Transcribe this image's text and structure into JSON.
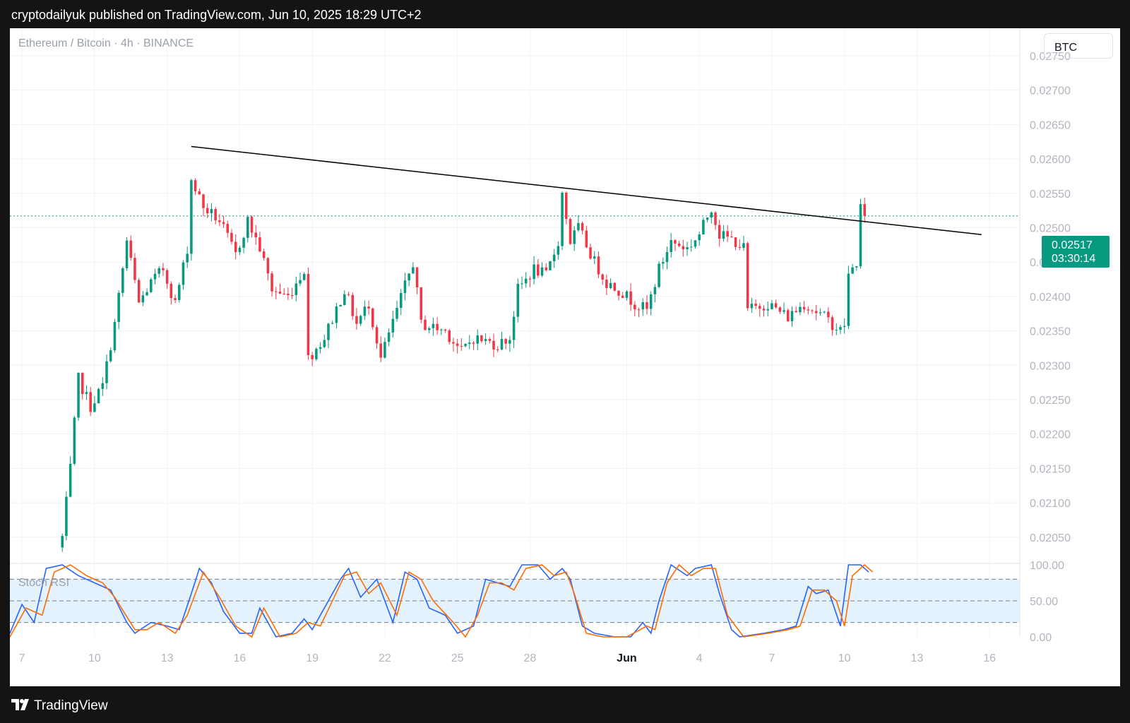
{
  "header": {
    "publisher_line": "cryptodailyuk published on TradingView.com, Jun 10, 2025 18:29 UTC+2"
  },
  "chart": {
    "symbol_line": "Ethereum / Bitcoin · 4h · BINANCE",
    "currency_button": "BTC",
    "last_price": "0.02517",
    "countdown": "03:30:14",
    "indicator_label": "Stoch RSI"
  },
  "footer": {
    "brand": "TradingView"
  },
  "colors": {
    "up": "#089981",
    "down": "#f23645",
    "k_line": "#2962ff",
    "d_line": "#ff6d00",
    "grid": "#f0f3fa",
    "axis_text": "#b2b5be",
    "band_fill": "#e3f2fd"
  },
  "chart_data": [
    {
      "type": "candlestick",
      "title": "Ethereum / Bitcoin · 4h · BINANCE",
      "y_axis": {
        "side": "right",
        "ylim": [
          0.0202,
          0.0279
        ],
        "ticks": [
          "0.02750",
          "0.02700",
          "0.02650",
          "0.02600",
          "0.02550",
          "0.02500",
          "0.02450",
          "0.02400",
          "0.02350",
          "0.02300",
          "0.02250",
          "0.02200",
          "0.02150",
          "0.02100",
          "0.02050"
        ]
      },
      "x_axis": {
        "start": "2025-05-06T12:00",
        "end": "2025-06-17T06:00",
        "ticks": [
          {
            "label": "7",
            "date": "2025-05-07"
          },
          {
            "label": "10",
            "date": "2025-05-10"
          },
          {
            "label": "13",
            "date": "2025-05-13"
          },
          {
            "label": "16",
            "date": "2025-05-16"
          },
          {
            "label": "19",
            "date": "2025-05-19"
          },
          {
            "label": "22",
            "date": "2025-05-22"
          },
          {
            "label": "25",
            "date": "2025-05-25"
          },
          {
            "label": "28",
            "date": "2025-05-28"
          },
          {
            "label": "Jun",
            "date": "2025-06-01",
            "bold": true
          },
          {
            "label": "4",
            "date": "2025-06-04"
          },
          {
            "label": "7",
            "date": "2025-06-07"
          },
          {
            "label": "10",
            "date": "2025-06-10"
          },
          {
            "label": "13",
            "date": "2025-06-13"
          },
          {
            "label": "16",
            "date": "2025-06-16"
          }
        ]
      },
      "grid": true,
      "last_price_line": 0.02517,
      "trendline": {
        "from": {
          "date": "2025-05-14T00:00",
          "price": 0.02618
        },
        "to": {
          "date": "2025-06-15T16:00",
          "price": 0.0249
        }
      },
      "price_anchors": [
        {
          "date": "2025-05-08T16:00",
          "price": 0.0205
        },
        {
          "date": "2025-05-09T00:00",
          "price": 0.0215
        },
        {
          "date": "2025-05-09T08:00",
          "price": 0.0228
        },
        {
          "date": "2025-05-09T20:00",
          "price": 0.0224
        },
        {
          "date": "2025-05-10T08:00",
          "price": 0.0227
        },
        {
          "date": "2025-05-10T20:00",
          "price": 0.0236
        },
        {
          "date": "2025-05-11T08:00",
          "price": 0.0248
        },
        {
          "date": "2025-05-11T20:00",
          "price": 0.0239
        },
        {
          "date": "2025-05-12T08:00",
          "price": 0.0242
        },
        {
          "date": "2025-05-12T20:00",
          "price": 0.0244
        },
        {
          "date": "2025-05-13T08:00",
          "price": 0.0239
        },
        {
          "date": "2025-05-13T20:00",
          "price": 0.0247
        },
        {
          "date": "2025-05-14T00:00",
          "price": 0.0257
        },
        {
          "date": "2025-05-14T12:00",
          "price": 0.0253
        },
        {
          "date": "2025-05-15T04:00",
          "price": 0.0251
        },
        {
          "date": "2025-05-15T20:00",
          "price": 0.0246
        },
        {
          "date": "2025-05-16T08:00",
          "price": 0.0251
        },
        {
          "date": "2025-05-16T20:00",
          "price": 0.0247
        },
        {
          "date": "2025-05-17T08:00",
          "price": 0.0241
        },
        {
          "date": "2025-05-18T00:00",
          "price": 0.024
        },
        {
          "date": "2025-05-18T16:00",
          "price": 0.0244
        },
        {
          "date": "2025-05-18T20:00",
          "price": 0.0231
        },
        {
          "date": "2025-05-19T12:00",
          "price": 0.0234
        },
        {
          "date": "2025-05-20T08:00",
          "price": 0.0241
        },
        {
          "date": "2025-05-20T20:00",
          "price": 0.0236
        },
        {
          "date": "2025-05-21T08:00",
          "price": 0.0239
        },
        {
          "date": "2025-05-21T20:00",
          "price": 0.0231
        },
        {
          "date": "2025-05-22T12:00",
          "price": 0.0238
        },
        {
          "date": "2025-05-23T04:00",
          "price": 0.0245
        },
        {
          "date": "2025-05-23T12:00",
          "price": 0.0236
        },
        {
          "date": "2025-05-24T12:00",
          "price": 0.0235
        },
        {
          "date": "2025-05-25T04:00",
          "price": 0.0232
        },
        {
          "date": "2025-05-25T16:00",
          "price": 0.0234
        },
        {
          "date": "2025-05-26T16:00",
          "price": 0.0233
        },
        {
          "date": "2025-05-27T04:00",
          "price": 0.0234
        },
        {
          "date": "2025-05-27T12:00",
          "price": 0.0241
        },
        {
          "date": "2025-05-28T04:00",
          "price": 0.0244
        },
        {
          "date": "2025-05-28T16:00",
          "price": 0.0243
        },
        {
          "date": "2025-05-29T04:00",
          "price": 0.0248
        },
        {
          "date": "2025-05-29T08:00",
          "price": 0.0255
        },
        {
          "date": "2025-05-29T16:00",
          "price": 0.0248
        },
        {
          "date": "2025-05-30T00:00",
          "price": 0.025
        },
        {
          "date": "2025-05-30T16:00",
          "price": 0.0245
        },
        {
          "date": "2025-05-31T04:00",
          "price": 0.0242
        },
        {
          "date": "2025-05-31T16:00",
          "price": 0.0241
        },
        {
          "date": "2025-06-01T08:00",
          "price": 0.0239
        },
        {
          "date": "2025-06-01T20:00",
          "price": 0.0238
        },
        {
          "date": "2025-06-02T08:00",
          "price": 0.0244
        },
        {
          "date": "2025-06-02T20:00",
          "price": 0.0248
        },
        {
          "date": "2025-06-03T12:00",
          "price": 0.0247
        },
        {
          "date": "2025-06-04T00:00",
          "price": 0.0249
        },
        {
          "date": "2025-06-04T12:00",
          "price": 0.0253
        },
        {
          "date": "2025-06-04T20:00",
          "price": 0.0249
        },
        {
          "date": "2025-06-05T12:00",
          "price": 0.0248
        },
        {
          "date": "2025-06-05T20:00",
          "price": 0.0247
        },
        {
          "date": "2025-06-06T00:00",
          "price": 0.0238
        },
        {
          "date": "2025-06-06T20:00",
          "price": 0.0239
        },
        {
          "date": "2025-06-07T16:00",
          "price": 0.0237
        },
        {
          "date": "2025-06-08T08:00",
          "price": 0.0239
        },
        {
          "date": "2025-06-09T04:00",
          "price": 0.0237
        },
        {
          "date": "2025-06-09T20:00",
          "price": 0.0235
        },
        {
          "date": "2025-06-10T00:00",
          "price": 0.0236
        },
        {
          "date": "2025-06-10T04:00",
          "price": 0.0243
        },
        {
          "date": "2025-06-10T12:00",
          "price": 0.0245
        },
        {
          "date": "2025-06-10T16:00",
          "price": 0.0253
        },
        {
          "date": "2025-06-10T20:00",
          "price": 0.02517
        }
      ]
    },
    {
      "type": "line",
      "title": "Stoch RSI",
      "ylim": [
        0,
        100
      ],
      "ticks": [
        "100.00",
        "50.00",
        "0.00"
      ],
      "bands": {
        "upper": 80,
        "middle": 50,
        "lower": 20
      },
      "series": [
        {
          "key": "k",
          "color": "#2962ff",
          "points": [
            [
              "2025-05-06T12:00",
              5
            ],
            [
              "2025-05-07T00:00",
              45
            ],
            [
              "2025-05-07T12:00",
              20
            ],
            [
              "2025-05-08T00:00",
              95
            ],
            [
              "2025-05-08T16:00",
              100
            ],
            [
              "2025-05-09T08:00",
              85
            ],
            [
              "2025-05-10T00:00",
              75
            ],
            [
              "2025-05-10T16:00",
              65
            ],
            [
              "2025-05-11T08:00",
              20
            ],
            [
              "2025-05-11T16:00",
              5
            ],
            [
              "2025-05-12T08:00",
              20
            ],
            [
              "2025-05-13T00:00",
              15
            ],
            [
              "2025-05-13T12:00",
              10
            ],
            [
              "2025-05-14T00:00",
              60
            ],
            [
              "2025-05-14T08:00",
              95
            ],
            [
              "2025-05-14T20:00",
              75
            ],
            [
              "2025-05-15T08:00",
              35
            ],
            [
              "2025-05-16T00:00",
              5
            ],
            [
              "2025-05-16T12:00",
              5
            ],
            [
              "2025-05-16T20:00",
              40
            ],
            [
              "2025-05-17T12:00",
              0
            ],
            [
              "2025-05-18T04:00",
              5
            ],
            [
              "2025-05-18T16:00",
              25
            ],
            [
              "2025-05-19T00:00",
              10
            ],
            [
              "2025-05-20T04:00",
              80
            ],
            [
              "2025-05-20T12:00",
              95
            ],
            [
              "2025-05-21T00:00",
              55
            ],
            [
              "2025-05-21T16:00",
              80
            ],
            [
              "2025-05-22T08:00",
              20
            ],
            [
              "2025-05-22T20:00",
              90
            ],
            [
              "2025-05-23T08:00",
              80
            ],
            [
              "2025-05-23T20:00",
              40
            ],
            [
              "2025-05-24T12:00",
              30
            ],
            [
              "2025-05-25T00:00",
              5
            ],
            [
              "2025-05-25T16:00",
              15
            ],
            [
              "2025-05-26T04:00",
              80
            ],
            [
              "2025-05-26T16:00",
              75
            ],
            [
              "2025-05-27T04:00",
              70
            ],
            [
              "2025-05-27T16:00",
              100
            ],
            [
              "2025-05-28T08:00",
              100
            ],
            [
              "2025-05-28T20:00",
              80
            ],
            [
              "2025-05-29T08:00",
              95
            ],
            [
              "2025-05-29T16:00",
              80
            ],
            [
              "2025-05-30T04:00",
              15
            ],
            [
              "2025-05-30T16:00",
              5
            ],
            [
              "2025-05-31T12:00",
              0
            ],
            [
              "2025-06-01T04:00",
              0
            ],
            [
              "2025-06-01T16:00",
              20
            ],
            [
              "2025-06-02T00:00",
              5
            ],
            [
              "2025-06-02T08:00",
              50
            ],
            [
              "2025-06-02T20:00",
              100
            ],
            [
              "2025-06-03T12:00",
              85
            ],
            [
              "2025-06-03T20:00",
              95
            ],
            [
              "2025-06-04T12:00",
              100
            ],
            [
              "2025-06-04T20:00",
              60
            ],
            [
              "2025-06-05T08:00",
              10
            ],
            [
              "2025-06-05T16:00",
              0
            ],
            [
              "2025-06-06T16:00",
              5
            ],
            [
              "2025-06-07T12:00",
              10
            ],
            [
              "2025-06-08T00:00",
              15
            ],
            [
              "2025-06-08T12:00",
              70
            ],
            [
              "2025-06-08T20:00",
              60
            ],
            [
              "2025-06-09T08:00",
              65
            ],
            [
              "2025-06-09T20:00",
              15
            ],
            [
              "2025-06-10T04:00",
              100
            ],
            [
              "2025-06-10T16:00",
              100
            ],
            [
              "2025-06-11T00:00",
              90
            ]
          ]
        },
        {
          "key": "d",
          "color": "#ff6d00",
          "points": [
            [
              "2025-05-06T12:00",
              0
            ],
            [
              "2025-05-07T04:00",
              40
            ],
            [
              "2025-05-07T20:00",
              30
            ],
            [
              "2025-05-08T08:00",
              90
            ],
            [
              "2025-05-09T00:00",
              100
            ],
            [
              "2025-05-09T16:00",
              85
            ],
            [
              "2025-05-10T08:00",
              75
            ],
            [
              "2025-05-10T20:00",
              55
            ],
            [
              "2025-05-11T16:00",
              10
            ],
            [
              "2025-05-12T04:00",
              10
            ],
            [
              "2025-05-12T16:00",
              20
            ],
            [
              "2025-05-13T08:00",
              5
            ],
            [
              "2025-05-13T20:00",
              30
            ],
            [
              "2025-05-14T12:00",
              90
            ],
            [
              "2025-05-15T04:00",
              55
            ],
            [
              "2025-05-15T20:00",
              15
            ],
            [
              "2025-05-16T12:00",
              0
            ],
            [
              "2025-05-17T00:00",
              40
            ],
            [
              "2025-05-17T16:00",
              0
            ],
            [
              "2025-05-18T08:00",
              5
            ],
            [
              "2025-05-18T20:00",
              20
            ],
            [
              "2025-05-19T08:00",
              15
            ],
            [
              "2025-05-20T08:00",
              85
            ],
            [
              "2025-05-20T20:00",
              90
            ],
            [
              "2025-05-21T08:00",
              60
            ],
            [
              "2025-05-21T20:00",
              75
            ],
            [
              "2025-05-22T12:00",
              30
            ],
            [
              "2025-05-23T00:00",
              90
            ],
            [
              "2025-05-23T12:00",
              80
            ],
            [
              "2025-05-24T00:00",
              50
            ],
            [
              "2025-05-24T20:00",
              20
            ],
            [
              "2025-05-25T08:00",
              0
            ],
            [
              "2025-05-25T20:00",
              30
            ],
            [
              "2025-05-26T08:00",
              75
            ],
            [
              "2025-05-26T20:00",
              75
            ],
            [
              "2025-05-27T08:00",
              65
            ],
            [
              "2025-05-27T20:00",
              95
            ],
            [
              "2025-05-28T12:00",
              100
            ],
            [
              "2025-05-29T00:00",
              85
            ],
            [
              "2025-05-29T12:00",
              90
            ],
            [
              "2025-05-29T20:00",
              60
            ],
            [
              "2025-05-30T08:00",
              5
            ],
            [
              "2025-05-31T00:00",
              0
            ],
            [
              "2025-06-01T00:00",
              0
            ],
            [
              "2025-06-01T20:00",
              15
            ],
            [
              "2025-06-02T04:00",
              10
            ],
            [
              "2025-06-02T16:00",
              75
            ],
            [
              "2025-06-03T04:00",
              100
            ],
            [
              "2025-06-03T16:00",
              85
            ],
            [
              "2025-06-04T04:00",
              95
            ],
            [
              "2025-06-04T16:00",
              95
            ],
            [
              "2025-06-05T04:00",
              30
            ],
            [
              "2025-06-05T20:00",
              0
            ],
            [
              "2025-06-06T20:00",
              5
            ],
            [
              "2025-06-07T16:00",
              10
            ],
            [
              "2025-06-08T04:00",
              15
            ],
            [
              "2025-06-08T16:00",
              65
            ],
            [
              "2025-06-09T04:00",
              65
            ],
            [
              "2025-06-09T16:00",
              50
            ],
            [
              "2025-06-10T00:00",
              15
            ],
            [
              "2025-06-10T08:00",
              85
            ],
            [
              "2025-06-10T20:00",
              100
            ],
            [
              "2025-06-11T04:00",
              90
            ]
          ]
        }
      ]
    }
  ]
}
